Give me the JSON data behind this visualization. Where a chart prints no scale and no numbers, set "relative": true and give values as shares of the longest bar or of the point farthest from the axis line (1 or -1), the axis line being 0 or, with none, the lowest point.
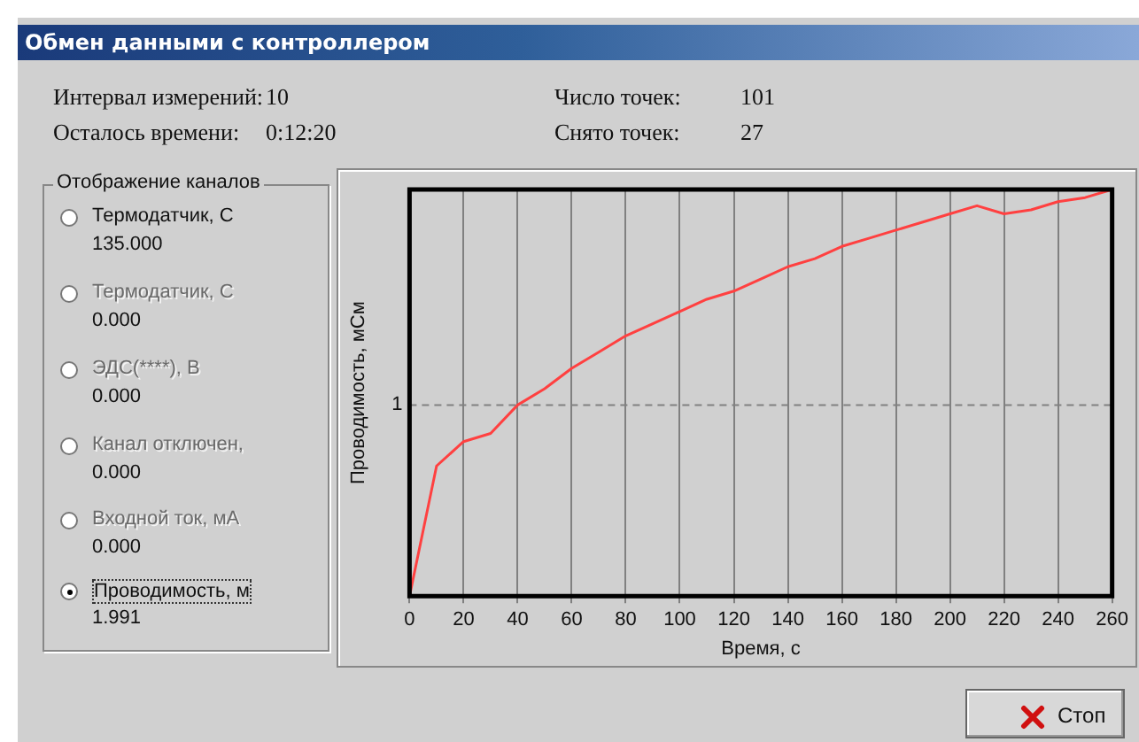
{
  "chart_data": {
    "type": "line",
    "title": "Обмен данными с контроллером",
    "xlabel": "Время, с",
    "ylabel": "Проводимость, мСм",
    "relative": true,
    "x": [
      0,
      10,
      20,
      30,
      40,
      50,
      60,
      70,
      80,
      90,
      100,
      110,
      120,
      130,
      140,
      150,
      160,
      170,
      180,
      190,
      200,
      210,
      220,
      230,
      240,
      250,
      260
    ],
    "series": [
      {
        "color": "#ff4040",
        "values": [
          0,
          0.32,
          0.38,
          0.4,
          0.47,
          0.51,
          0.56,
          0.6,
          0.64,
          0.67,
          0.7,
          0.73,
          0.75,
          0.78,
          0.81,
          0.83,
          0.86,
          0.88,
          0.9,
          0.92,
          0.94,
          0.96,
          0.94,
          0.95,
          0.97,
          0.98,
          1
        ]
      }
    ],
    "xlim": [
      0,
      260
    ],
    "xticks": [
      0,
      20,
      40,
      60,
      80,
      100,
      120,
      140,
      160,
      180,
      200,
      220,
      240,
      260
    ],
    "grid": "x",
    "legend": false,
    "marker": "none",
    "line_style": "solid",
    "ref_lines": [
      {
        "axis": "y",
        "value": 0.47,
        "line_style": "dashed",
        "color": "#808080"
      }
    ],
    "annotations": [
      "Интервал измерений:",
      "10",
      "Число точек:",
      "101",
      "Осталось времени:",
      "0:12:20",
      "Снято точек:",
      "27",
      "Отображение каналов",
      "Термодатчик, С",
      "135.000",
      "Термодатчик, С",
      "0.000",
      "ЭДС(****), В",
      "0.000",
      "Канал отключен,",
      "0.000",
      "Входной ток, мА",
      "0.000",
      "Проводимость, м",
      "1.991",
      "Стоп",
      "1"
    ]
  }
}
